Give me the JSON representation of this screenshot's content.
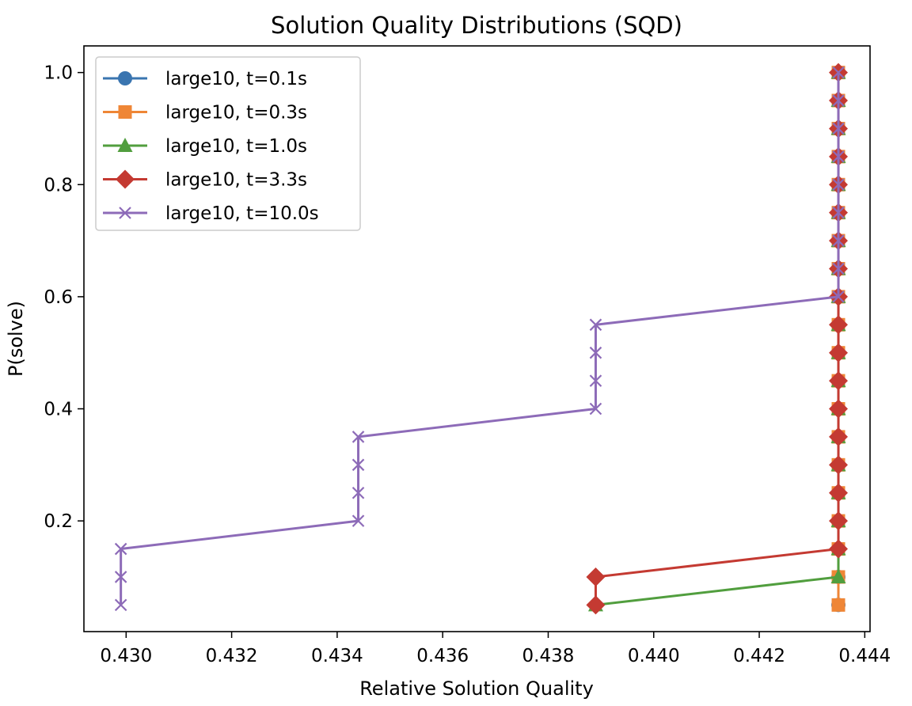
{
  "chart_data": {
    "type": "line",
    "title": "Solution Quality Distributions (SQD)",
    "xlabel": "Relative Solution Quality",
    "ylabel": "P(solve)",
    "xlim": [
      0.4292,
      0.4441
    ],
    "ylim": [
      0.0025,
      1.0475
    ],
    "xticks": [
      0.43,
      0.432,
      0.434,
      0.436,
      0.438,
      0.44,
      0.442,
      0.444
    ],
    "xtick_labels": [
      "0.430",
      "0.432",
      "0.434",
      "0.436",
      "0.438",
      "0.440",
      "0.442",
      "0.444"
    ],
    "yticks": [
      0.2,
      0.4,
      0.6,
      0.8,
      1.0
    ],
    "ytick_labels": [
      "0.2",
      "0.4",
      "0.6",
      "0.8",
      "1.0"
    ],
    "grid": false,
    "legend": "top-left",
    "series": [
      {
        "name": "large10, t=0.1s",
        "color": "#3a75b0",
        "marker": "circle",
        "points": [
          [
            0.4435,
            0.05
          ],
          [
            0.4435,
            0.1
          ],
          [
            0.4435,
            0.15
          ],
          [
            0.4435,
            0.2
          ],
          [
            0.4435,
            0.25
          ],
          [
            0.4435,
            0.3
          ],
          [
            0.4435,
            0.35
          ],
          [
            0.4435,
            0.4
          ],
          [
            0.4435,
            0.45
          ],
          [
            0.4435,
            0.5
          ],
          [
            0.4435,
            0.55
          ],
          [
            0.4435,
            0.6
          ],
          [
            0.4435,
            0.65
          ],
          [
            0.4435,
            0.7
          ],
          [
            0.4435,
            0.75
          ],
          [
            0.4435,
            0.8
          ],
          [
            0.4435,
            0.85
          ],
          [
            0.4435,
            0.9
          ],
          [
            0.4435,
            0.95
          ],
          [
            0.4435,
            1.0
          ]
        ]
      },
      {
        "name": "large10, t=0.3s",
        "color": "#ef8636",
        "marker": "square",
        "points": [
          [
            0.4435,
            0.05
          ],
          [
            0.4435,
            0.1
          ],
          [
            0.4435,
            0.15
          ],
          [
            0.4435,
            0.2
          ],
          [
            0.4435,
            0.25
          ],
          [
            0.4435,
            0.3
          ],
          [
            0.4435,
            0.35
          ],
          [
            0.4435,
            0.4
          ],
          [
            0.4435,
            0.45
          ],
          [
            0.4435,
            0.5
          ],
          [
            0.4435,
            0.55
          ],
          [
            0.4435,
            0.6
          ],
          [
            0.4435,
            0.65
          ],
          [
            0.4435,
            0.7
          ],
          [
            0.4435,
            0.75
          ],
          [
            0.4435,
            0.8
          ],
          [
            0.4435,
            0.85
          ],
          [
            0.4435,
            0.9
          ],
          [
            0.4435,
            0.95
          ],
          [
            0.4435,
            1.0
          ]
        ]
      },
      {
        "name": "large10, t=1.0s",
        "color": "#519e3e",
        "marker": "triangle",
        "points": [
          [
            0.4389,
            0.05
          ],
          [
            0.4435,
            0.1
          ],
          [
            0.4435,
            0.15
          ],
          [
            0.4435,
            0.2
          ],
          [
            0.4435,
            0.25
          ],
          [
            0.4435,
            0.3
          ],
          [
            0.4435,
            0.35
          ],
          [
            0.4435,
            0.4
          ],
          [
            0.4435,
            0.45
          ],
          [
            0.4435,
            0.5
          ],
          [
            0.4435,
            0.55
          ],
          [
            0.4435,
            0.6
          ],
          [
            0.4435,
            0.65
          ],
          [
            0.4435,
            0.7
          ],
          [
            0.4435,
            0.75
          ],
          [
            0.4435,
            0.8
          ],
          [
            0.4435,
            0.85
          ],
          [
            0.4435,
            0.9
          ],
          [
            0.4435,
            0.95
          ],
          [
            0.4435,
            1.0
          ]
        ]
      },
      {
        "name": "large10, t=3.3s",
        "color": "#c43a32",
        "marker": "diamond",
        "points": [
          [
            0.4389,
            0.05
          ],
          [
            0.4389,
            0.1
          ],
          [
            0.4435,
            0.15
          ],
          [
            0.4435,
            0.2
          ],
          [
            0.4435,
            0.25
          ],
          [
            0.4435,
            0.3
          ],
          [
            0.4435,
            0.35
          ],
          [
            0.4435,
            0.4
          ],
          [
            0.4435,
            0.45
          ],
          [
            0.4435,
            0.5
          ],
          [
            0.4435,
            0.55
          ],
          [
            0.4435,
            0.6
          ],
          [
            0.4435,
            0.65
          ],
          [
            0.4435,
            0.7
          ],
          [
            0.4435,
            0.75
          ],
          [
            0.4435,
            0.8
          ],
          [
            0.4435,
            0.85
          ],
          [
            0.4435,
            0.9
          ],
          [
            0.4435,
            0.95
          ],
          [
            0.4435,
            1.0
          ]
        ]
      },
      {
        "name": "large10, t=10.0s",
        "color": "#8d6bb8",
        "marker": "x",
        "points": [
          [
            0.4299,
            0.05
          ],
          [
            0.4299,
            0.1
          ],
          [
            0.4299,
            0.15
          ],
          [
            0.4344,
            0.2
          ],
          [
            0.4344,
            0.25
          ],
          [
            0.4344,
            0.3
          ],
          [
            0.4344,
            0.35
          ],
          [
            0.4389,
            0.4
          ],
          [
            0.4389,
            0.45
          ],
          [
            0.4389,
            0.5
          ],
          [
            0.4389,
            0.55
          ],
          [
            0.4435,
            0.6
          ],
          [
            0.4435,
            0.65
          ],
          [
            0.4435,
            0.7
          ],
          [
            0.4435,
            0.75
          ],
          [
            0.4435,
            0.8
          ],
          [
            0.4435,
            0.85
          ],
          [
            0.4435,
            0.9
          ],
          [
            0.4435,
            0.95
          ],
          [
            0.4435,
            1.0
          ]
        ]
      }
    ]
  }
}
